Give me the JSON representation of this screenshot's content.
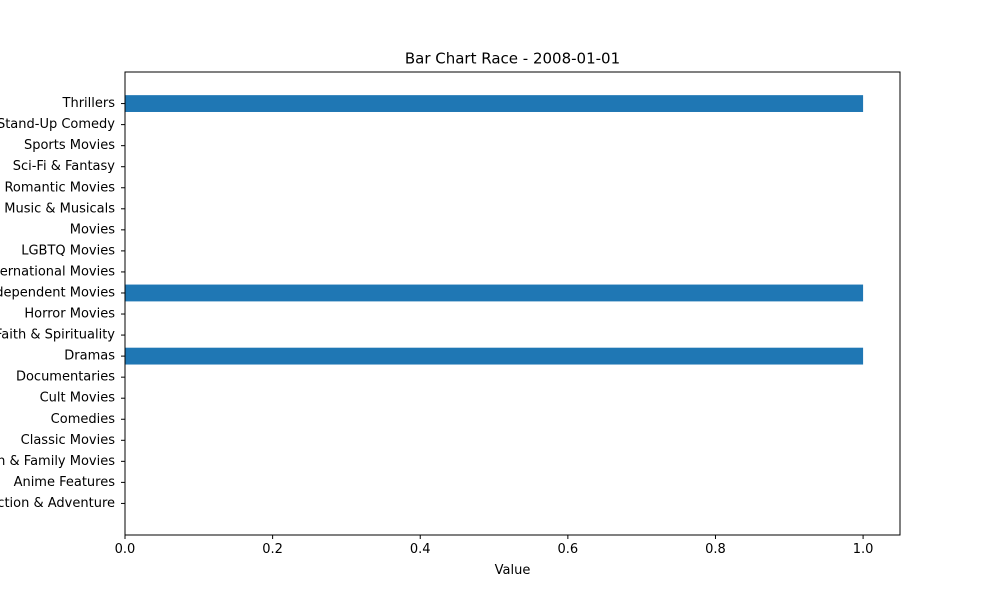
{
  "chart_data": {
    "type": "bar",
    "orientation": "horizontal",
    "title": "Bar Chart Race - 2008-01-01",
    "xlabel": "Value",
    "ylabel": "",
    "xlim": [
      0.0,
      1.05
    ],
    "x_ticks": [
      0.0,
      0.2,
      0.4,
      0.6,
      0.8,
      1.0
    ],
    "x_tick_labels": [
      "0.0",
      "0.2",
      "0.4",
      "0.6",
      "0.8",
      "1.0"
    ],
    "grid": false,
    "legend": "none",
    "bar_color": "#1f77b4",
    "categories": [
      "Action & Adventure",
      "Anime Features",
      "Children & Family Movies",
      "Classic Movies",
      "Comedies",
      "Cult Movies",
      "Documentaries",
      "Dramas",
      "Faith & Spirituality",
      "Horror Movies",
      "Independent Movies",
      "International Movies",
      "LGBTQ Movies",
      "Movies",
      "Music & Musicals",
      "Romantic Movies",
      "Sci-Fi & Fantasy",
      "Sports Movies",
      "Stand-Up Comedy",
      "Thrillers"
    ],
    "values": [
      0,
      0,
      0,
      0,
      0,
      0,
      0,
      1,
      0,
      0,
      1,
      0,
      0,
      0,
      0,
      0,
      0,
      0,
      0,
      1
    ]
  }
}
